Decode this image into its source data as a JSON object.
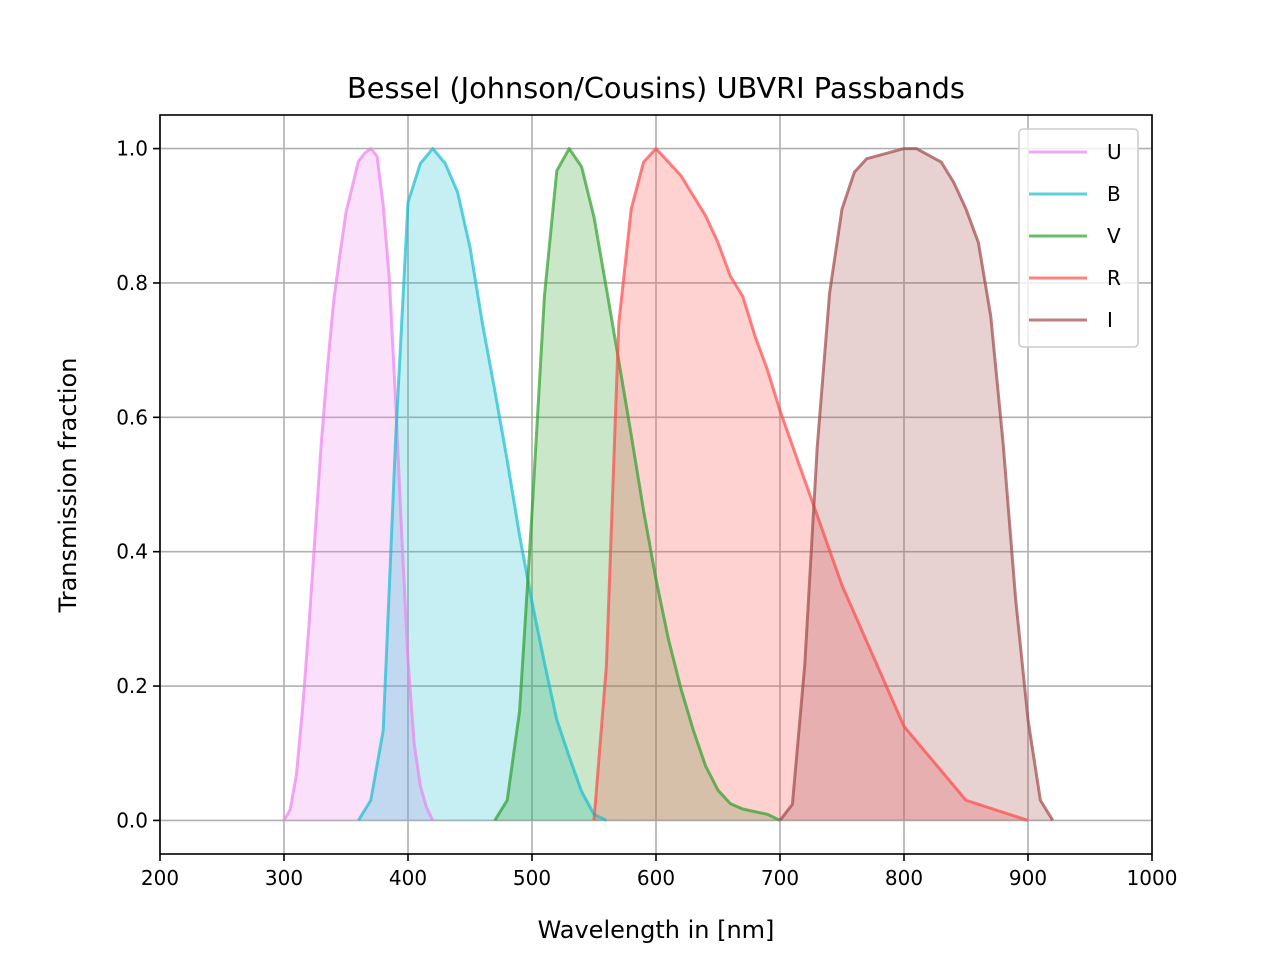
{
  "chart_data": {
    "type": "area",
    "title": "Bessel (Johnson/Cousins) UBVRI Passbands",
    "xlabel": "Wavelength in [nm]",
    "ylabel": "Transmission fraction",
    "xlim": [
      200,
      1000
    ],
    "ylim": [
      -0.05,
      1.05
    ],
    "xticks": [
      200,
      300,
      400,
      500,
      600,
      700,
      800,
      900,
      1000
    ],
    "xtick_labels": [
      "200",
      "300",
      "400",
      "500",
      "600",
      "700",
      "800",
      "900",
      "1000"
    ],
    "yticks": [
      0.0,
      0.2,
      0.4,
      0.6,
      0.8,
      1.0
    ],
    "ytick_labels": [
      "0.0",
      "0.2",
      "0.4",
      "0.6",
      "0.8",
      "1.0"
    ],
    "grid": true,
    "legend_position": "top-right",
    "series": [
      {
        "name": "U",
        "color": "#ee82ee",
        "x": [
          300,
          305,
          310,
          315,
          320,
          325,
          330,
          335,
          340,
          345,
          350,
          355,
          360,
          365,
          370,
          375,
          380,
          385,
          390,
          395,
          400,
          405,
          410,
          415,
          420
        ],
        "y": [
          0.0,
          0.016,
          0.068,
          0.167,
          0.287,
          0.423,
          0.56,
          0.673,
          0.772,
          0.841,
          0.905,
          0.943,
          0.981,
          0.993,
          1.0,
          0.989,
          0.916,
          0.804,
          0.625,
          0.423,
          0.238,
          0.114,
          0.051,
          0.019,
          0.0
        ]
      },
      {
        "name": "B",
        "color": "#17becf",
        "x": [
          360,
          370,
          380,
          390,
          400,
          410,
          420,
          430,
          440,
          450,
          460,
          470,
          480,
          490,
          500,
          510,
          520,
          530,
          540,
          550,
          560
        ],
        "y": [
          0.0,
          0.03,
          0.134,
          0.567,
          0.92,
          0.978,
          1.0,
          0.978,
          0.935,
          0.853,
          0.74,
          0.64,
          0.536,
          0.424,
          0.325,
          0.235,
          0.15,
          0.095,
          0.043,
          0.009,
          0.0
        ]
      },
      {
        "name": "V",
        "color": "#2ca02c",
        "x": [
          470,
          480,
          490,
          500,
          510,
          520,
          530,
          540,
          550,
          560,
          570,
          580,
          590,
          600,
          610,
          620,
          630,
          640,
          650,
          660,
          670,
          680,
          690,
          700
        ],
        "y": [
          0.0,
          0.03,
          0.163,
          0.458,
          0.78,
          0.967,
          1.0,
          0.973,
          0.898,
          0.792,
          0.684,
          0.574,
          0.461,
          0.359,
          0.27,
          0.197,
          0.135,
          0.081,
          0.045,
          0.025,
          0.017,
          0.013,
          0.009,
          0.0
        ]
      },
      {
        "name": "R",
        "color": "#ff4a4a",
        "x": [
          550,
          560,
          570,
          580,
          590,
          600,
          610,
          620,
          630,
          640,
          650,
          660,
          670,
          680,
          690,
          700,
          750,
          800,
          850,
          900
        ],
        "y": [
          0.0,
          0.23,
          0.74,
          0.91,
          0.98,
          1.0,
          0.98,
          0.96,
          0.93,
          0.9,
          0.86,
          0.81,
          0.78,
          0.72,
          0.67,
          0.61,
          0.35,
          0.14,
          0.03,
          0.0
        ]
      },
      {
        "name": "I",
        "color": "#a04848",
        "x": [
          700,
          710,
          720,
          730,
          740,
          750,
          760,
          770,
          780,
          790,
          800,
          810,
          820,
          830,
          840,
          850,
          860,
          870,
          880,
          890,
          900,
          910,
          920
        ],
        "y": [
          0.0,
          0.024,
          0.232,
          0.555,
          0.785,
          0.91,
          0.965,
          0.985,
          0.99,
          0.995,
          1.0,
          1.0,
          0.99,
          0.98,
          0.95,
          0.91,
          0.86,
          0.75,
          0.56,
          0.33,
          0.15,
          0.03,
          0.0
        ]
      }
    ]
  }
}
